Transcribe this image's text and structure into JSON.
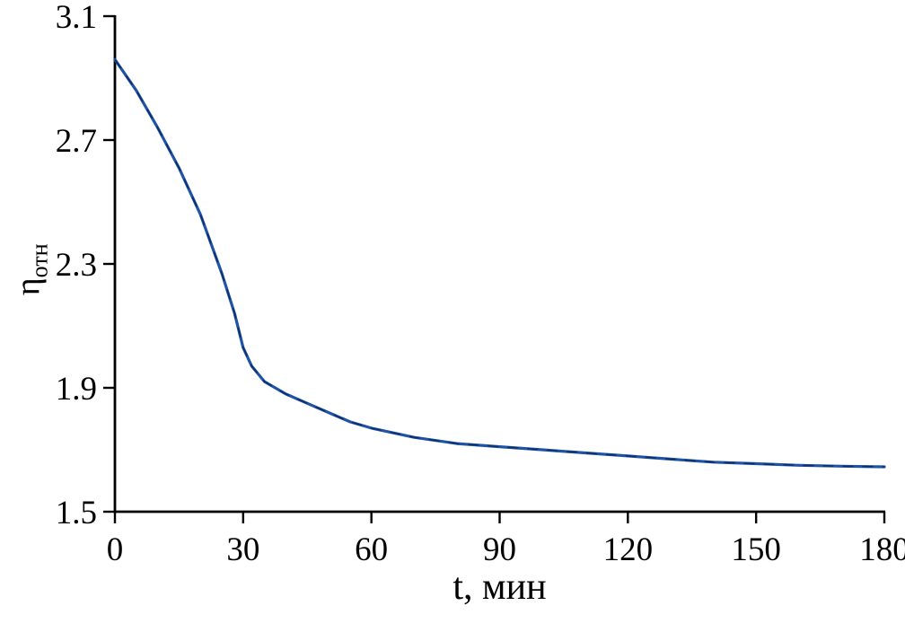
{
  "chart_data": {
    "type": "line",
    "title": "",
    "xlabel": "t, мин",
    "ylabel": {
      "main": "η",
      "sub": "отн"
    },
    "xlim": [
      0,
      180
    ],
    "ylim": [
      1.5,
      3.1
    ],
    "x_ticks": [
      0,
      30,
      60,
      90,
      120,
      150,
      180
    ],
    "x_tick_labels": [
      "0",
      "30",
      "60",
      "90",
      "120",
      "150",
      "180"
    ],
    "y_ticks": [
      1.5,
      1.9,
      2.3,
      2.7,
      3.1
    ],
    "y_tick_labels": [
      "1.5",
      "1.9",
      "2.3",
      "2.7",
      "3.1"
    ],
    "grid": false,
    "legend": "none",
    "axis_color": "#000000",
    "series": [
      {
        "name": "η отн vs t",
        "color": "#1f53a6",
        "dash_overlay_color": "#0d2e66",
        "x": [
          0,
          5,
          10,
          15,
          20,
          25,
          28,
          30,
          32,
          35,
          40,
          45,
          50,
          55,
          60,
          70,
          80,
          90,
          100,
          110,
          120,
          130,
          140,
          150,
          160,
          170,
          180
        ],
        "y": [
          2.96,
          2.86,
          2.74,
          2.61,
          2.46,
          2.27,
          2.14,
          2.03,
          1.97,
          1.92,
          1.88,
          1.85,
          1.82,
          1.79,
          1.77,
          1.74,
          1.72,
          1.71,
          1.7,
          1.69,
          1.68,
          1.67,
          1.66,
          1.655,
          1.65,
          1.647,
          1.645
        ]
      }
    ]
  }
}
